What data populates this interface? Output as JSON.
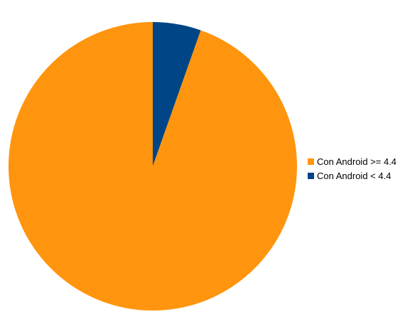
{
  "chart_data": {
    "type": "pie",
    "slices": [
      {
        "label": "Con Android >= 4.4",
        "value": 94.6,
        "color": "#ff950e"
      },
      {
        "label": "Con Android < 4.4",
        "value": 5.4,
        "color": "#004586"
      }
    ],
    "legend_position": "right",
    "start": "top",
    "direction": "clockwise-from-top, smaller slice first"
  },
  "legend": {
    "items": [
      {
        "label": "Con Android >= 4.4",
        "color": "#ff950e"
      },
      {
        "label": "Con Android < 4.4",
        "color": "#004586"
      }
    ]
  }
}
